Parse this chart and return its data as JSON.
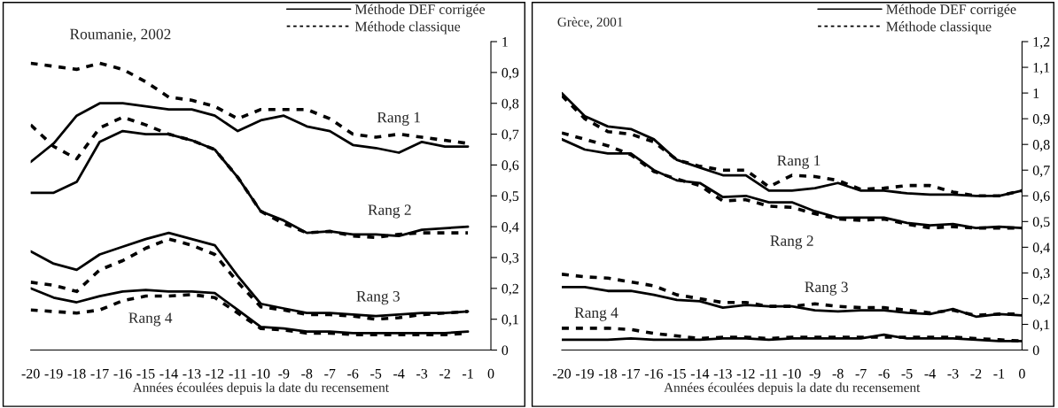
{
  "chart_data": [
    {
      "type": "line",
      "title": "Roumanie, 2002",
      "xlabel": "Années écoulées depuis la date du recensement",
      "x": [
        -20,
        -19,
        -18,
        -17,
        -16,
        -15,
        -14,
        -13,
        -12,
        -11,
        -10,
        -9,
        -8,
        -7,
        -6,
        -5,
        -4,
        -3,
        -2,
        -1
      ],
      "xlim": [
        -20,
        0
      ],
      "xticks": [
        -20,
        -19,
        -18,
        -17,
        -16,
        -15,
        -14,
        -13,
        -12,
        -11,
        -10,
        -9,
        -8,
        -7,
        -6,
        -5,
        -4,
        -3,
        -2,
        -1,
        0
      ],
      "ylim": [
        0,
        1
      ],
      "yticks": [
        0,
        {
          "value": 0.1,
          "label": "0,1"
        },
        {
          "value": 0.2,
          "label": "0,2"
        },
        {
          "value": 0.3,
          "label": "0,3"
        },
        {
          "value": 0.4,
          "label": "0,4"
        },
        {
          "value": 0.5,
          "label": "0,5"
        },
        {
          "value": 0.6,
          "label": "0,6"
        },
        {
          "value": 0.7,
          "label": "0,7"
        },
        {
          "value": 0.8,
          "label": "0,8"
        },
        {
          "value": 0.9,
          "label": "0,9"
        },
        1
      ],
      "legend": "top right",
      "grid": false,
      "series": [
        {
          "name": "Méthode DEF corrigée",
          "color": "#000000",
          "line_style": "solid",
          "values": [
            0.61,
            0.67,
            0.76,
            0.8,
            0.8,
            0.79,
            0.78,
            0.78,
            0.76,
            0.71,
            0.745,
            0.76,
            0.725,
            0.71,
            0.665,
            0.655,
            0.64,
            0.675,
            0.66,
            0.66
          ]
        },
        {
          "name": "Méthode classique",
          "color": "#000000",
          "line_style": "dotted",
          "values": [
            0.93,
            0.92,
            0.91,
            0.93,
            0.91,
            0.87,
            0.82,
            0.81,
            0.79,
            0.75,
            0.78,
            0.78,
            0.78,
            0.75,
            0.7,
            0.69,
            0.7,
            0.69,
            0.68,
            0.67
          ]
        },
        {
          "color": "#000000",
          "line_style": "solid",
          "values": [
            0.51,
            0.51,
            0.545,
            0.675,
            0.71,
            0.7,
            0.7,
            0.68,
            0.65,
            0.56,
            0.45,
            0.42,
            0.38,
            0.385,
            0.375,
            0.375,
            0.37,
            0.39,
            0.395,
            0.4
          ]
        },
        {
          "color": "#000000",
          "line_style": "dotted",
          "values": [
            0.73,
            0.66,
            0.62,
            0.72,
            0.755,
            0.73,
            0.7,
            0.68,
            0.65,
            0.56,
            0.45,
            0.41,
            0.38,
            0.385,
            0.37,
            0.365,
            0.375,
            0.38,
            0.38,
            0.38
          ]
        },
        {
          "color": "#000000",
          "line_style": "solid",
          "values": [
            0.32,
            0.28,
            0.26,
            0.31,
            0.335,
            0.36,
            0.38,
            0.36,
            0.34,
            0.24,
            0.15,
            0.135,
            0.12,
            0.12,
            0.115,
            0.11,
            0.115,
            0.12,
            0.12,
            0.125
          ]
        },
        {
          "color": "#000000",
          "line_style": "dotted",
          "values": [
            0.22,
            0.21,
            0.19,
            0.26,
            0.29,
            0.33,
            0.36,
            0.34,
            0.31,
            0.22,
            0.14,
            0.13,
            0.115,
            0.115,
            0.11,
            0.1,
            0.105,
            0.115,
            0.12,
            0.125
          ]
        },
        {
          "color": "#000000",
          "line_style": "solid",
          "values": [
            0.2,
            0.17,
            0.155,
            0.175,
            0.19,
            0.195,
            0.19,
            0.19,
            0.185,
            0.13,
            0.075,
            0.07,
            0.06,
            0.06,
            0.055,
            0.055,
            0.055,
            0.055,
            0.055,
            0.06
          ]
        },
        {
          "color": "#000000",
          "line_style": "dotted",
          "values": [
            0.13,
            0.125,
            0.12,
            0.13,
            0.16,
            0.175,
            0.175,
            0.18,
            0.17,
            0.12,
            0.07,
            0.065,
            0.055,
            0.055,
            0.05,
            0.05,
            0.05,
            0.05,
            0.05,
            0.055
          ]
        }
      ],
      "annotations": [
        "Rang 1",
        "Rang 2",
        "Rang 3",
        "Rang 4"
      ]
    },
    {
      "type": "line",
      "title": "Grèce, 2001",
      "xlabel": "Années écoulées depuis la date du recensement",
      "x": [
        -20,
        -19,
        -18,
        -17,
        -16,
        -15,
        -14,
        -13,
        -12,
        -11,
        -10,
        -9,
        -8,
        -7,
        -6,
        -5,
        -4,
        -3,
        -2,
        -1,
        0
      ],
      "xlim": [
        -20,
        0
      ],
      "xticks": [
        -20,
        -19,
        -18,
        -17,
        -16,
        -15,
        -14,
        -13,
        -12,
        -11,
        -10,
        -9,
        -8,
        -7,
        -6,
        -5,
        -4,
        -3,
        -2,
        -1,
        0
      ],
      "ylim": [
        0,
        1.2
      ],
      "yticks": [
        0,
        {
          "value": 0.1,
          "label": "0,1"
        },
        {
          "value": 0.2,
          "label": "0,2"
        },
        {
          "value": 0.3,
          "label": "0,3"
        },
        {
          "value": 0.4,
          "label": "0,4"
        },
        {
          "value": 0.5,
          "label": "0,5"
        },
        {
          "value": 0.6,
          "label": "0,6"
        },
        {
          "value": 0.7,
          "label": "0,7"
        },
        {
          "value": 0.8,
          "label": "0,8"
        },
        {
          "value": 0.9,
          "label": "0,9"
        },
        1,
        {
          "value": 1.1,
          "label": "1,1"
        },
        {
          "value": 1.2,
          "label": "1,2"
        }
      ],
      "legend": "top right",
      "grid": false,
      "series": [
        {
          "name": "Méthode DEF corrigée",
          "color": "#000000",
          "line_style": "solid",
          "values": [
            1.0,
            0.91,
            0.87,
            0.86,
            0.82,
            0.74,
            0.71,
            0.68,
            0.68,
            0.62,
            0.62,
            0.63,
            0.65,
            0.62,
            0.62,
            0.61,
            0.605,
            0.605,
            0.6,
            0.6,
            0.62
          ]
        },
        {
          "name": "Méthode classique",
          "color": "#000000",
          "line_style": "dotted",
          "values": [
            0.99,
            0.9,
            0.85,
            0.84,
            0.81,
            0.74,
            0.715,
            0.7,
            0.7,
            0.635,
            0.68,
            0.675,
            0.66,
            0.625,
            0.63,
            0.64,
            0.64,
            0.615,
            0.6,
            0.6,
            0.62
          ]
        },
        {
          "color": "#000000",
          "line_style": "solid",
          "values": [
            0.82,
            0.78,
            0.765,
            0.765,
            0.7,
            0.66,
            0.65,
            0.595,
            0.6,
            0.575,
            0.575,
            0.54,
            0.515,
            0.515,
            0.515,
            0.495,
            0.485,
            0.49,
            0.475,
            0.48,
            0.475
          ]
        },
        {
          "color": "#000000",
          "line_style": "dotted",
          "values": [
            0.845,
            0.82,
            0.795,
            0.76,
            0.695,
            0.665,
            0.64,
            0.58,
            0.585,
            0.56,
            0.555,
            0.53,
            0.51,
            0.505,
            0.51,
            0.49,
            0.475,
            0.48,
            0.475,
            0.475,
            0.475
          ]
        },
        {
          "color": "#000000",
          "line_style": "solid",
          "values": [
            0.245,
            0.245,
            0.23,
            0.23,
            0.215,
            0.195,
            0.19,
            0.165,
            0.175,
            0.17,
            0.17,
            0.155,
            0.15,
            0.155,
            0.155,
            0.145,
            0.14,
            0.16,
            0.13,
            0.14,
            0.135
          ]
        },
        {
          "color": "#000000",
          "line_style": "dotted",
          "values": [
            0.295,
            0.285,
            0.28,
            0.265,
            0.25,
            0.215,
            0.2,
            0.185,
            0.185,
            0.17,
            0.17,
            0.18,
            0.17,
            0.165,
            0.165,
            0.155,
            0.145,
            0.155,
            0.135,
            0.14,
            0.14
          ]
        },
        {
          "color": "#000000",
          "line_style": "solid",
          "values": [
            0.04,
            0.04,
            0.04,
            0.045,
            0.04,
            0.04,
            0.04,
            0.045,
            0.045,
            0.04,
            0.045,
            0.045,
            0.045,
            0.045,
            0.06,
            0.045,
            0.045,
            0.045,
            0.04,
            0.035,
            0.035
          ]
        },
        {
          "color": "#000000",
          "line_style": "dotted",
          "values": [
            0.085,
            0.085,
            0.085,
            0.08,
            0.065,
            0.055,
            0.045,
            0.05,
            0.05,
            0.045,
            0.05,
            0.05,
            0.05,
            0.05,
            0.05,
            0.05,
            0.05,
            0.05,
            0.045,
            0.04,
            0.035
          ]
        }
      ],
      "annotations": [
        "Rang 1",
        "Rang 2",
        "Rang 3",
        "Rang 4"
      ]
    }
  ]
}
